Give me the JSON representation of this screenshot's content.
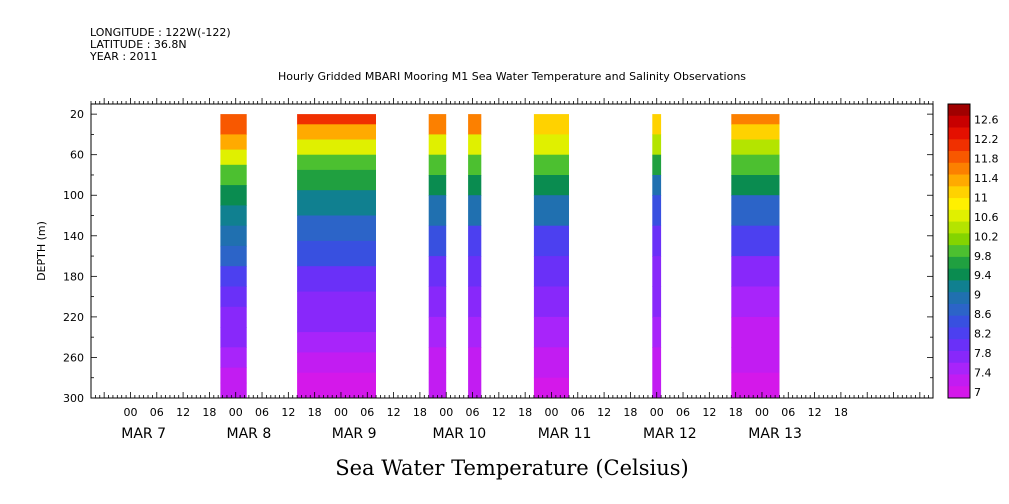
{
  "header": {
    "longitude": "LONGITUDE : 122W(-122)",
    "latitude": "LATITUDE : 36.8N",
    "year": "YEAR : 2011"
  },
  "chart_data": {
    "type": "heatmap",
    "title": "Hourly Gridded MBARI Mooring M1 Sea Water Temperature and Salinity Observations",
    "xlabel": "",
    "ylabel": "DEPTH (m)",
    "colorbar_label": "Sea Water Temperature (Celsius)",
    "y_inverted": true,
    "ylim": [
      300,
      10
    ],
    "xlim_hours": [
      -9,
      183
    ],
    "x_origin": "MAR 7 00:00",
    "x_hour_ticks": [
      "00",
      "06",
      "12",
      "18",
      "00",
      "06",
      "12",
      "18",
      "00",
      "06",
      "12",
      "18",
      "00",
      "06",
      "12",
      "18",
      "00",
      "06",
      "12",
      "18",
      "00",
      "06",
      "12",
      "18",
      "00",
      "06",
      "12",
      "18"
    ],
    "x_day_labels": [
      "MAR 7",
      "MAR 8",
      "MAR 9",
      "MAR 10",
      "MAR 11",
      "MAR 12",
      "MAR 13"
    ],
    "y_tick_labels": [
      "20",
      "60",
      "100",
      "140",
      "180",
      "220",
      "260",
      "300"
    ],
    "y_ticks": [
      20,
      60,
      100,
      140,
      180,
      220,
      260,
      300
    ],
    "colorbar_levels": [
      "12.6",
      "12.2",
      "11.8",
      "11.4",
      "11",
      "10.6",
      "10.2",
      "9.8",
      "9.4",
      "9",
      "8.6",
      "8.2",
      "7.8",
      "7.4",
      "7"
    ],
    "colorbar_colors": [
      "#a00000",
      "#c80000",
      "#e41000",
      "#f03000",
      "#f85800",
      "#fc8000",
      "#ffaa00",
      "#ffd200",
      "#fff000",
      "#e0f000",
      "#b4e400",
      "#84d400",
      "#4cc030",
      "#20a040",
      "#0a8c50",
      "#108090",
      "#2070b0",
      "#2c64c8",
      "#3850e0",
      "#4c40f0",
      "#6a30f8",
      "#8828fa",
      "#a824fa",
      "#c21cf2",
      "#d418ea"
    ],
    "color_range": [
      7,
      12.8
    ],
    "data_blocks": [
      {
        "start_hour": 20.5,
        "end_hour": 26.5,
        "profile": [
          [
            20,
            11.9
          ],
          [
            40,
            11.8
          ],
          [
            55,
            11.0
          ],
          [
            70,
            10.3
          ],
          [
            90,
            9.7
          ],
          [
            110,
            9.3
          ],
          [
            130,
            9.1
          ],
          [
            150,
            8.8
          ],
          [
            170,
            8.5
          ],
          [
            190,
            8.2
          ],
          [
            210,
            8.0
          ],
          [
            230,
            7.8
          ],
          [
            250,
            7.7
          ],
          [
            270,
            7.5
          ],
          [
            285,
            7.3
          ],
          [
            300,
            7.2
          ]
        ]
      },
      {
        "start_hour": 38,
        "end_hour": 56,
        "profile": [
          [
            20,
            12.2
          ],
          [
            30,
            11.6
          ],
          [
            45,
            10.8
          ],
          [
            60,
            10.2
          ],
          [
            75,
            9.8
          ],
          [
            95,
            9.5
          ],
          [
            120,
            9.0
          ],
          [
            145,
            8.6
          ],
          [
            170,
            8.3
          ],
          [
            195,
            8.0
          ],
          [
            215,
            7.8
          ],
          [
            235,
            7.6
          ],
          [
            255,
            7.4
          ],
          [
            275,
            7.2
          ],
          [
            300,
            7.1
          ]
        ]
      },
      {
        "start_hour": 68,
        "end_hour": 72,
        "profile": [
          [
            20,
            11.9
          ],
          [
            40,
            11.0
          ],
          [
            60,
            10.2
          ],
          [
            80,
            9.6
          ],
          [
            100,
            9.2
          ],
          [
            130,
            8.7
          ],
          [
            160,
            8.2
          ],
          [
            190,
            7.9
          ],
          [
            220,
            7.7
          ],
          [
            250,
            7.5
          ],
          [
            275,
            7.3
          ],
          [
            300,
            7.2
          ]
        ]
      },
      {
        "start_hour": 77,
        "end_hour": 80,
        "profile": [
          [
            20,
            11.9
          ],
          [
            40,
            11.0
          ],
          [
            60,
            10.1
          ],
          [
            80,
            9.6
          ],
          [
            100,
            9.2
          ],
          [
            130,
            8.6
          ],
          [
            160,
            8.1
          ],
          [
            190,
            7.8
          ],
          [
            220,
            7.6
          ],
          [
            250,
            7.4
          ],
          [
            300,
            7.2
          ]
        ]
      },
      {
        "start_hour": 92,
        "end_hour": 100,
        "profile": [
          [
            20,
            11.5
          ],
          [
            40,
            10.8
          ],
          [
            60,
            10.2
          ],
          [
            80,
            9.6
          ],
          [
            100,
            9.2
          ],
          [
            130,
            8.6
          ],
          [
            160,
            8.1
          ],
          [
            190,
            7.8
          ],
          [
            220,
            7.6
          ],
          [
            250,
            7.4
          ],
          [
            280,
            7.2
          ],
          [
            300,
            7.0
          ]
        ]
      },
      {
        "start_hour": 119,
        "end_hour": 121,
        "profile": [
          [
            20,
            11.6
          ],
          [
            40,
            10.6
          ],
          [
            60,
            10.0
          ],
          [
            80,
            9.3
          ],
          [
            100,
            8.8
          ],
          [
            130,
            8.3
          ],
          [
            160,
            8.0
          ],
          [
            190,
            7.8
          ],
          [
            220,
            7.6
          ],
          [
            250,
            7.4
          ],
          [
            300,
            7.2
          ]
        ]
      },
      {
        "start_hour": 137,
        "end_hour": 148,
        "profile": [
          [
            20,
            11.8
          ],
          [
            30,
            11.2
          ],
          [
            45,
            10.7
          ],
          [
            60,
            10.2
          ],
          [
            80,
            9.6
          ],
          [
            100,
            9.1
          ],
          [
            130,
            8.5
          ],
          [
            160,
            8.0
          ],
          [
            190,
            7.7
          ],
          [
            220,
            7.5
          ],
          [
            250,
            7.3
          ],
          [
            275,
            7.2
          ],
          [
            300,
            7.0
          ]
        ]
      }
    ]
  }
}
